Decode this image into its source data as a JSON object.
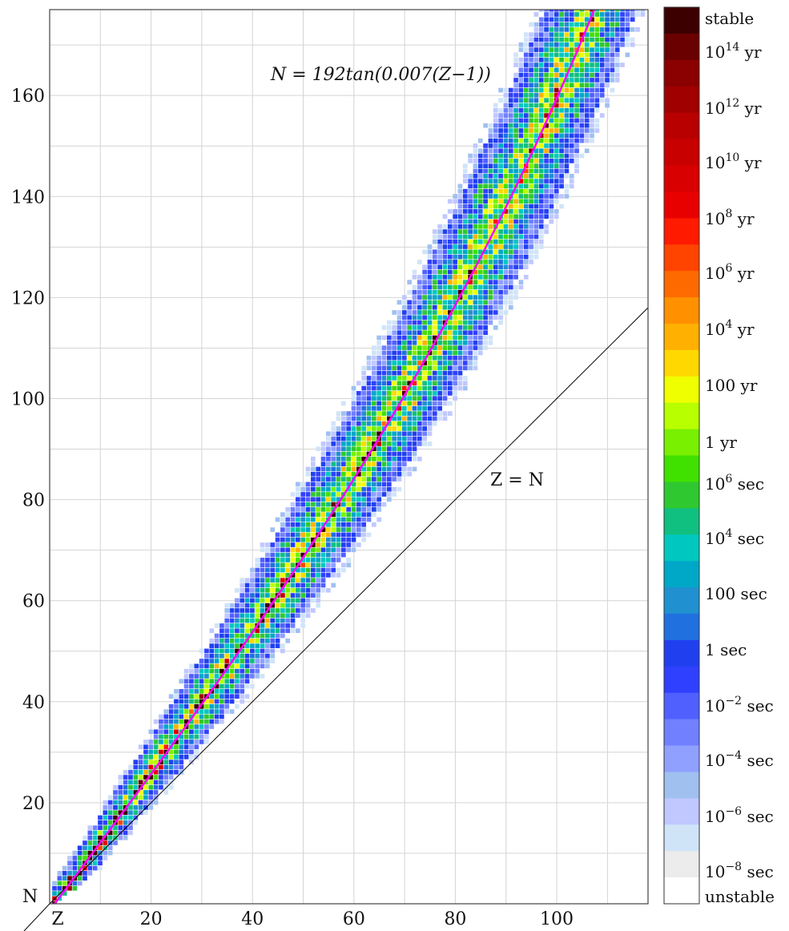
{
  "chart_data": {
    "type": "heatmap",
    "title": "",
    "xlabel": "Z",
    "ylabel": "N",
    "x_ticks": [
      20,
      40,
      60,
      80,
      100
    ],
    "y_ticks": [
      20,
      40,
      60,
      80,
      100,
      120,
      140,
      160
    ],
    "xlim": [
      0,
      118
    ],
    "ylim": [
      0,
      177
    ],
    "grid": true,
    "grid_step": 10,
    "colorbar_position": "right",
    "fit_line": {
      "label": "N = 192tan(0.007(Z−1))",
      "a": 192,
      "b": 0.007,
      "color": "#ff00ff"
    },
    "reference_line": {
      "label": "Z = N",
      "color": "#000000"
    },
    "nuclide_band": {
      "description_of_center": "valley of stability follows fit line",
      "z_min": 1,
      "z_max": 118,
      "n_max": 177
    },
    "color_scale": [
      {
        "label": "stable",
        "color": "#3d0000"
      },
      {
        "label": "10^14 yr",
        "color": "#6a0000"
      },
      {
        "label": "",
        "color": "#8b0000"
      },
      {
        "label": "10^12 yr",
        "color": "#a00000"
      },
      {
        "label": "",
        "color": "#b80000"
      },
      {
        "label": "10^10 yr",
        "color": "#c80000"
      },
      {
        "label": "",
        "color": "#d80000"
      },
      {
        "label": "10^8 yr",
        "color": "#e80000"
      },
      {
        "label": "",
        "color": "#ff1a00"
      },
      {
        "label": "10^6 yr",
        "color": "#ff4400"
      },
      {
        "label": "",
        "color": "#ff6a00"
      },
      {
        "label": "10^4 yr",
        "color": "#ff9000"
      },
      {
        "label": "",
        "color": "#ffb000"
      },
      {
        "label": "100 yr",
        "color": "#ffd800"
      },
      {
        "label": "",
        "color": "#f0ff00"
      },
      {
        "label": "",
        "color": "#b8ff00"
      },
      {
        "label": "1 yr",
        "color": "#78f000"
      },
      {
        "label": "",
        "color": "#40e000"
      },
      {
        "label": "10^6 sec",
        "color": "#30c830"
      },
      {
        "label": "",
        "color": "#10c080"
      },
      {
        "label": "10^4 sec",
        "color": "#00c8c0"
      },
      {
        "label": "",
        "color": "#00a8c8"
      },
      {
        "label": "100 sec",
        "color": "#2090d0"
      },
      {
        "label": "",
        "color": "#2070e0"
      },
      {
        "label": "1 sec",
        "color": "#2040f0"
      },
      {
        "label": "",
        "color": "#3040ff"
      },
      {
        "label": "10^-2 sec",
        "color": "#5060ff"
      },
      {
        "label": "",
        "color": "#7080ff"
      },
      {
        "label": "10^-4 sec",
        "color": "#90a0ff"
      },
      {
        "label": "",
        "color": "#a0c0f0"
      },
      {
        "label": "10^-6 sec",
        "color": "#c0c8ff"
      },
      {
        "label": "",
        "color": "#d0e4f8"
      },
      {
        "label": "10^-8 sec",
        "color": "#ececec"
      },
      {
        "label": "unstable",
        "color": "#ffffff"
      }
    ],
    "colorbar_labels": [
      {
        "base": "stable",
        "exp": "",
        "unit": ""
      },
      {
        "base": "10",
        "exp": "14",
        "unit": " yr"
      },
      {
        "base": "10",
        "exp": "12",
        "unit": " yr"
      },
      {
        "base": "10",
        "exp": "10",
        "unit": " yr"
      },
      {
        "base": "10",
        "exp": "8",
        "unit": " yr"
      },
      {
        "base": "10",
        "exp": "6",
        "unit": " yr"
      },
      {
        "base": "10",
        "exp": "4",
        "unit": " yr"
      },
      {
        "base": "100 yr",
        "exp": "",
        "unit": ""
      },
      {
        "base": "1 yr",
        "exp": "",
        "unit": ""
      },
      {
        "base": "10",
        "exp": "6",
        "unit": " sec"
      },
      {
        "base": "10",
        "exp": "4",
        "unit": " sec"
      },
      {
        "base": "100 sec",
        "exp": "",
        "unit": ""
      },
      {
        "base": "1 sec",
        "exp": "",
        "unit": ""
      },
      {
        "base": "10",
        "exp": "−2",
        "unit": " sec"
      },
      {
        "base": "10",
        "exp": "−4",
        "unit": " sec"
      },
      {
        "base": "10",
        "exp": "−6",
        "unit": " sec"
      },
      {
        "base": "10",
        "exp": "−8",
        "unit": " sec"
      },
      {
        "base": "unstable",
        "exp": "",
        "unit": ""
      }
    ]
  }
}
